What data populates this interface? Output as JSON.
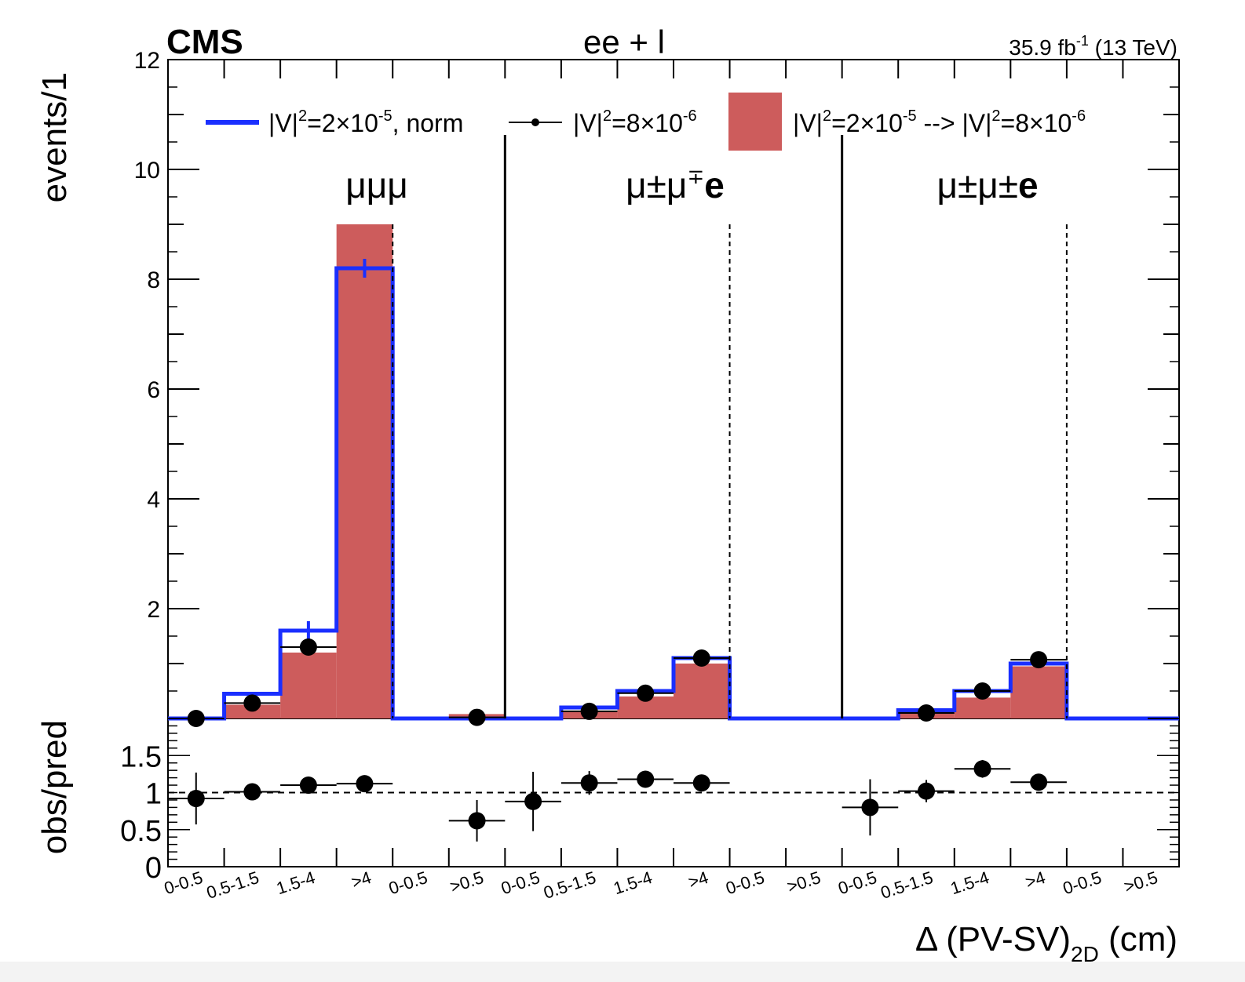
{
  "chart_data": {
    "type": "bar",
    "title": "ee + l",
    "experiment": "CMS",
    "lumi": "35.9 fb",
    "lumi_sup": "-1",
    "energy": " (13 TeV)",
    "ylabel": "events/1",
    "ratio_ylabel": "obs/pred",
    "xlabel_main": "Δ (PV-SV)",
    "xlabel_sub": "2D",
    "xlabel_unit": " (cm)",
    "ylim": [
      0,
      12
    ],
    "ratio_ylim": [
      0,
      2
    ],
    "yticks": [
      2,
      4,
      6,
      8,
      10,
      12
    ],
    "ratio_yticks": [
      0,
      0.5,
      1,
      1.5
    ],
    "categories": [
      "0-0.5",
      "0.5-1.5",
      "1.5-4",
      ">4",
      "0-0.5",
      ">0.5",
      "0-0.5",
      "0.5-1.5",
      "1.5-4",
      ">4",
      "0-0.5",
      ">0.5",
      "0-0.5",
      "0.5-1.5",
      "1.5-4",
      ">4",
      "0-0.5",
      ">0.5"
    ],
    "regions": [
      {
        "label": "μμμ",
        "sup": "",
        "tail": ""
      },
      {
        "label": "μ±μ",
        "sup": "∓",
        "tail": "e"
      },
      {
        "label": "μ±μ±",
        "sup": "",
        "tail": "e"
      }
    ],
    "legend": [
      {
        "pre": "|V|",
        "sup1": "2",
        "mid": "=2×10",
        "sup2": "-5",
        "post": ", norm"
      },
      {
        "pre": "|V|",
        "sup1": "2",
        "mid": "=8×10",
        "sup2": "-6",
        "post": ""
      },
      {
        "pre": "|V|",
        "sup1": "2",
        "mid": "=2×10",
        "sup2": "-5",
        "post": " --> |V|",
        "sup3": "2",
        "mid2": "=8×10",
        "sup4": "-6"
      }
    ],
    "series": [
      {
        "name": "|V|²=2×10⁻⁵ --> |V|²=8×10⁻⁶",
        "color": "#cd5c5c",
        "values": [
          0,
          0.25,
          1.2,
          9.0,
          0,
          0.08,
          0,
          0.12,
          0.4,
          1.0,
          0,
          0,
          0,
          0.1,
          0.38,
          0.95,
          0,
          0
        ]
      },
      {
        "name": "|V|²=2×10⁻⁵, norm",
        "color": "#1a2fff",
        "values": [
          0,
          0.45,
          1.6,
          8.2,
          0,
          0,
          0,
          0.2,
          0.5,
          1.1,
          0,
          0,
          0,
          0.15,
          0.5,
          1.0,
          0,
          0
        ]
      },
      {
        "name": "|V|²=8×10⁻⁶",
        "color": "#000000",
        "values": [
          0,
          0.28,
          1.3,
          null,
          null,
          0.02,
          null,
          0.13,
          0.46,
          1.1,
          null,
          null,
          null,
          0.1,
          0.5,
          1.07,
          null,
          null
        ]
      }
    ],
    "ratio": {
      "values": [
        0.92,
        1.01,
        1.1,
        1.12,
        null,
        0.62,
        0.88,
        1.13,
        1.18,
        1.13,
        null,
        null,
        0.8,
        1.02,
        1.32,
        1.14,
        null,
        null
      ],
      "errors": [
        0.35,
        0.04,
        0.05,
        0.04,
        null,
        0.28,
        0.4,
        0.16,
        0.1,
        0.08,
        null,
        null,
        0.38,
        0.15,
        0.12,
        0.08,
        null,
        null
      ]
    }
  }
}
